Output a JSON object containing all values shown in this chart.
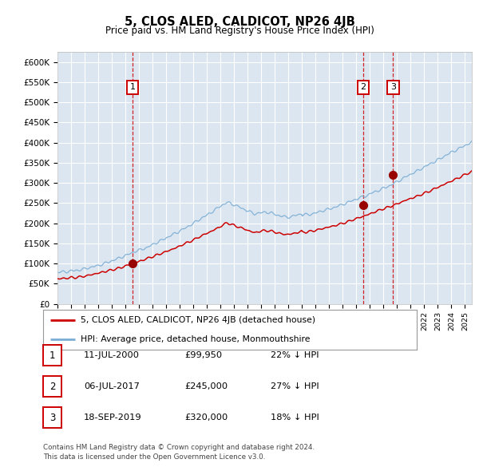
{
  "title": "5, CLOS ALED, CALDICOT, NP26 4JB",
  "subtitle": "Price paid vs. HM Land Registry's House Price Index (HPI)",
  "ylim": [
    0,
    625000
  ],
  "yticks": [
    0,
    50000,
    100000,
    150000,
    200000,
    250000,
    300000,
    350000,
    400000,
    450000,
    500000,
    550000,
    600000
  ],
  "ytick_labels": [
    "£0",
    "£50K",
    "£100K",
    "£150K",
    "£200K",
    "£250K",
    "£300K",
    "£350K",
    "£400K",
    "£450K",
    "£500K",
    "£550K",
    "£600K"
  ],
  "background_color": "#ffffff",
  "plot_bg_color": "#dce6f1",
  "grid_color": "#ffffff",
  "red_line_color": "#cc0000",
  "blue_line_color": "#7aadd4",
  "sale_marker_color": "#990000",
  "sales": [
    {
      "date_year": 2000.53,
      "price": 99950,
      "label": "1"
    },
    {
      "date_year": 2017.51,
      "price": 245000,
      "label": "2"
    },
    {
      "date_year": 2019.71,
      "price": 320000,
      "label": "3"
    }
  ],
  "legend_entries": [
    "5, CLOS ALED, CALDICOT, NP26 4JB (detached house)",
    "HPI: Average price, detached house, Monmouthshire"
  ],
  "table_entries": [
    {
      "num": "1",
      "date": "11-JUL-2000",
      "price": "£99,950",
      "hpi": "22% ↓ HPI"
    },
    {
      "num": "2",
      "date": "06-JUL-2017",
      "price": "£245,000",
      "hpi": "27% ↓ HPI"
    },
    {
      "num": "3",
      "date": "18-SEP-2019",
      "price": "£320,000",
      "hpi": "18% ↓ HPI"
    }
  ],
  "footer": "Contains HM Land Registry data © Crown copyright and database right 2024.\nThis data is licensed under the Open Government Licence v3.0.",
  "xmin": 1995.0,
  "xmax": 2025.5
}
